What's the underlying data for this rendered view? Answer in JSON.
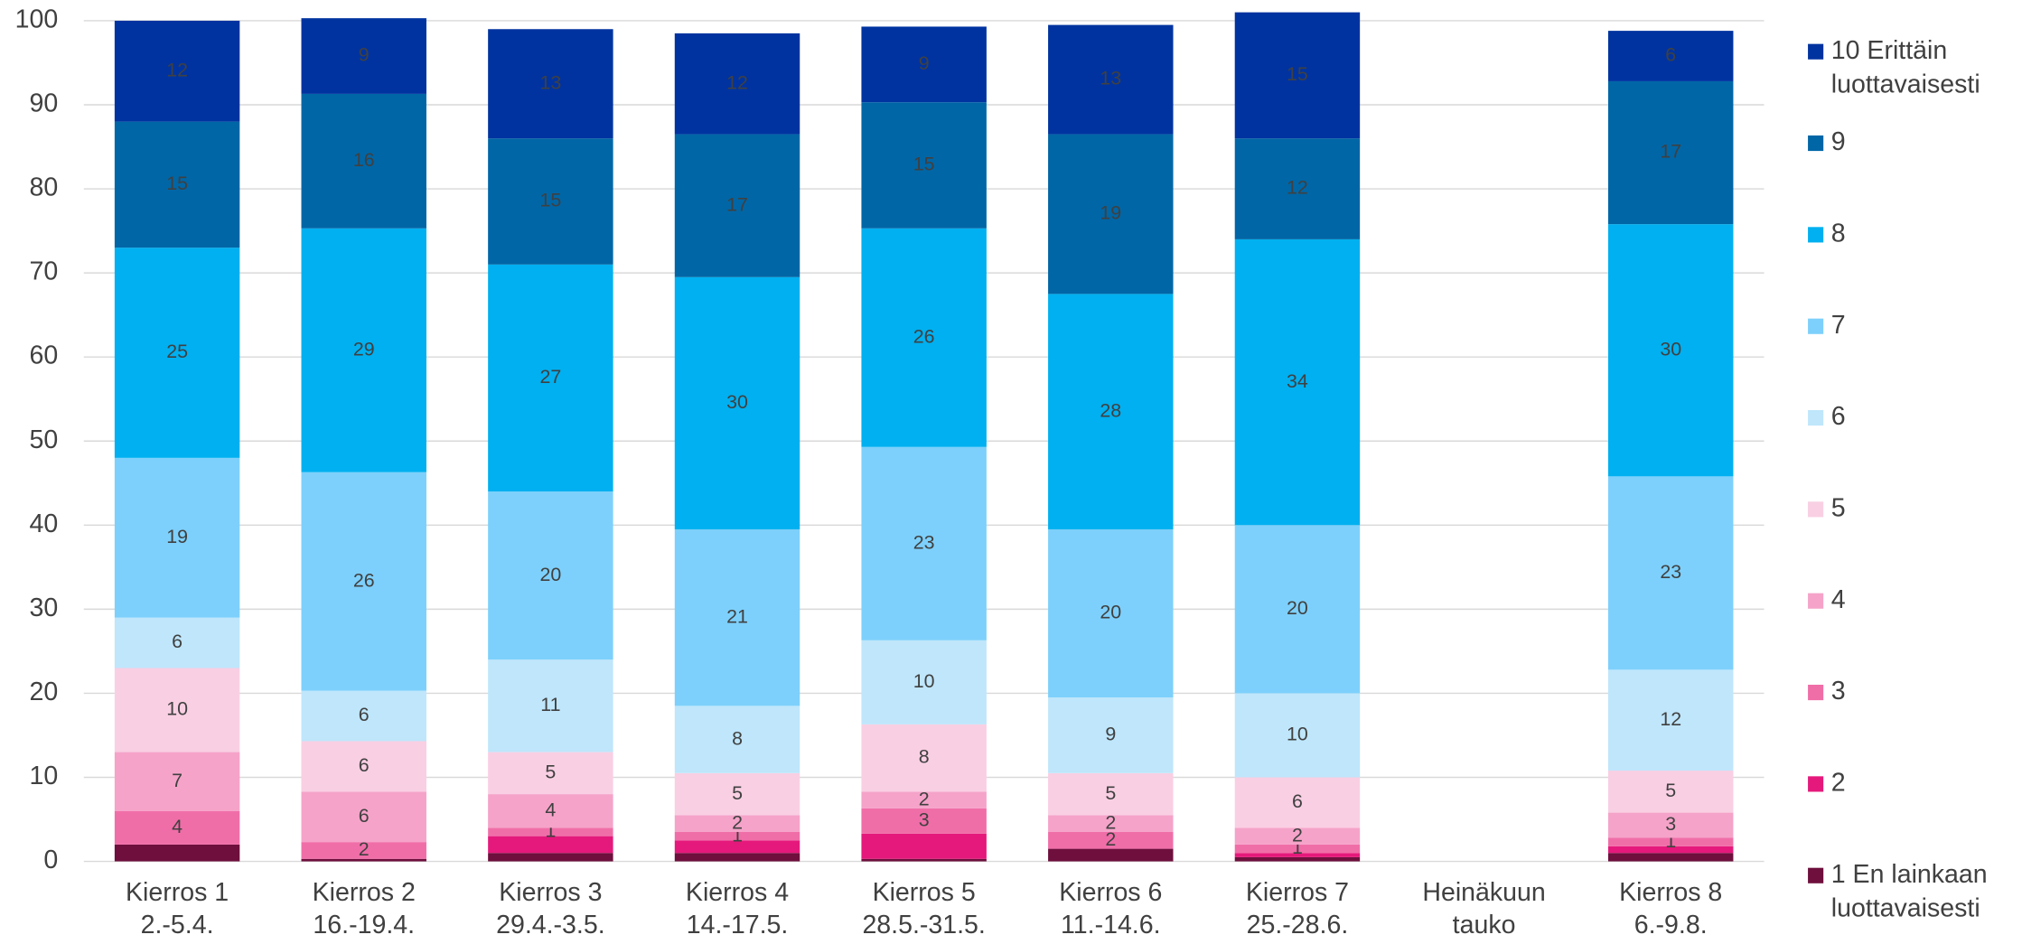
{
  "chart_data": {
    "type": "stacked_bar",
    "categories": [
      "Kierros 1\n2.-5.4.",
      "Kierros 2\n16.-19.4.",
      "Kierros 3\n29.4.-3.5.",
      "Kierros 4\n14.-17.5.",
      "Kierros 5\n28.5.-31.5.",
      "Kierros 6\n11.-14.6.",
      "Kierros 7\n25.-28.6.",
      "Heinäkuun\ntauko",
      "Kierros 8\n6.-9.8."
    ],
    "series": [
      {
        "name": "1 En lainkaan\nluottavaisesti",
        "color": "#6e0f3d",
        "label_color": "#ffffff",
        "values": [
          2,
          0.3,
          1,
          1,
          0.3,
          1.5,
          0.5,
          null,
          1
        ],
        "value_labels": [
          null,
          null,
          null,
          null,
          null,
          null,
          null,
          null,
          null
        ]
      },
      {
        "name": "2",
        "color": "#e5197b",
        "label_color": "#ffffff",
        "values": [
          0,
          0,
          2,
          1.5,
          3,
          0,
          0.5,
          null,
          0.8
        ],
        "value_labels": [
          null,
          null,
          null,
          null,
          null,
          null,
          null,
          null,
          null
        ]
      },
      {
        "name": "3",
        "color": "#f06ea8",
        "label_color": "#ffffff",
        "values": [
          4,
          2,
          1,
          1,
          3,
          2,
          1,
          null,
          1
        ],
        "value_labels": [
          "4",
          "2",
          "1",
          "1",
          "3",
          "2",
          "1",
          null,
          "1"
        ]
      },
      {
        "name": "4",
        "color": "#f5a3c9",
        "label_color": "#404040",
        "values": [
          7,
          6,
          4,
          2,
          2,
          2,
          2,
          null,
          3
        ],
        "value_labels": [
          "7",
          "6",
          "4",
          "2",
          "2",
          "2",
          "2",
          null,
          "3"
        ]
      },
      {
        "name": "5",
        "color": "#f9cfe3",
        "label_color": "#404040",
        "values": [
          10,
          6,
          5,
          5,
          8,
          5,
          6,
          null,
          5
        ],
        "value_labels": [
          "10",
          "6",
          "5",
          "5",
          "8",
          "5",
          "6",
          null,
          "5"
        ]
      },
      {
        "name": "6",
        "color": "#bfe6fb",
        "label_color": "#404040",
        "values": [
          6,
          6,
          11,
          8,
          10,
          9,
          10,
          null,
          12
        ],
        "value_labels": [
          "6",
          "6",
          "11",
          "8",
          "10",
          "9",
          "10",
          null,
          "12"
        ]
      },
      {
        "name": "7",
        "color": "#7dd0fb",
        "label_color": "#404040",
        "values": [
          19,
          26,
          20,
          21,
          23,
          20,
          20,
          null,
          23
        ],
        "value_labels": [
          "19",
          "26",
          "20",
          "21",
          "23",
          "20",
          "20",
          null,
          "23"
        ]
      },
      {
        "name": "8",
        "color": "#00b0f0",
        "label_color": "#404040",
        "values": [
          25,
          29,
          27,
          30,
          26,
          28,
          34,
          null,
          30
        ],
        "value_labels": [
          "25",
          "29",
          "27",
          "30",
          "26",
          "28",
          "34",
          null,
          "30"
        ]
      },
      {
        "name": "9",
        "color": "#0066a6",
        "label_color": "#ffffff",
        "values": [
          15,
          16,
          15,
          17,
          15,
          19,
          12,
          null,
          17
        ],
        "value_labels": [
          "15",
          "16",
          "15",
          "17",
          "15",
          "19",
          "12",
          null,
          "17"
        ]
      },
      {
        "name": "10 Erittäin\nluottavaisesti",
        "color": "#0033a0",
        "label_color": "#ffffff",
        "values": [
          12,
          9,
          13,
          12,
          9,
          13,
          15,
          null,
          6
        ],
        "value_labels": [
          "12",
          "9",
          "13",
          "12",
          "9",
          "13",
          "15",
          null,
          "6"
        ]
      }
    ],
    "ylim": [
      0,
      100
    ],
    "yticks": [
      0,
      10,
      20,
      30,
      40,
      50,
      60,
      70,
      80,
      90,
      100
    ],
    "grid": true,
    "legend": "right"
  }
}
